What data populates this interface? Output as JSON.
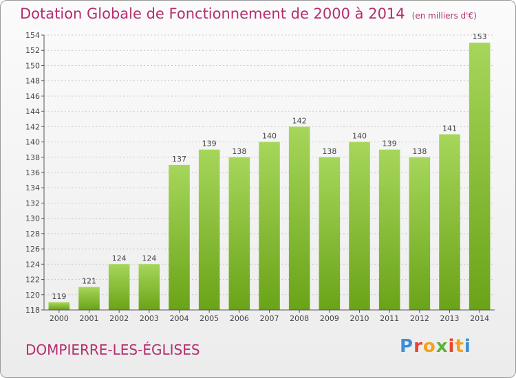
{
  "header": {
    "title": "Dotation Globale de Fonctionnement de 2000 à 2014",
    "subtitle": "(en milliers d'€)"
  },
  "footer": {
    "commune": "DOMPIERRE-LES-ÉGLISES",
    "logo_text": "Proxiti"
  },
  "colors": {
    "title": "#b42e6f",
    "bar_top": "#a6d65a",
    "bar_bottom": "#6aa318",
    "axis": "#555555"
  },
  "chart_data": {
    "type": "bar",
    "categories": [
      "2000",
      "2001",
      "2002",
      "2003",
      "2004",
      "2005",
      "2006",
      "2007",
      "2008",
      "2009",
      "2010",
      "2011",
      "2012",
      "2013",
      "2014"
    ],
    "values": [
      119,
      121,
      124,
      124,
      137,
      139,
      138,
      140,
      142,
      138,
      140,
      139,
      138,
      141,
      153
    ],
    "ylim": [
      118,
      154
    ],
    "yticks": [
      118,
      120,
      122,
      124,
      126,
      128,
      130,
      132,
      134,
      136,
      138,
      140,
      142,
      144,
      146,
      148,
      150,
      152,
      154
    ],
    "grid": true,
    "data_labels": true
  }
}
